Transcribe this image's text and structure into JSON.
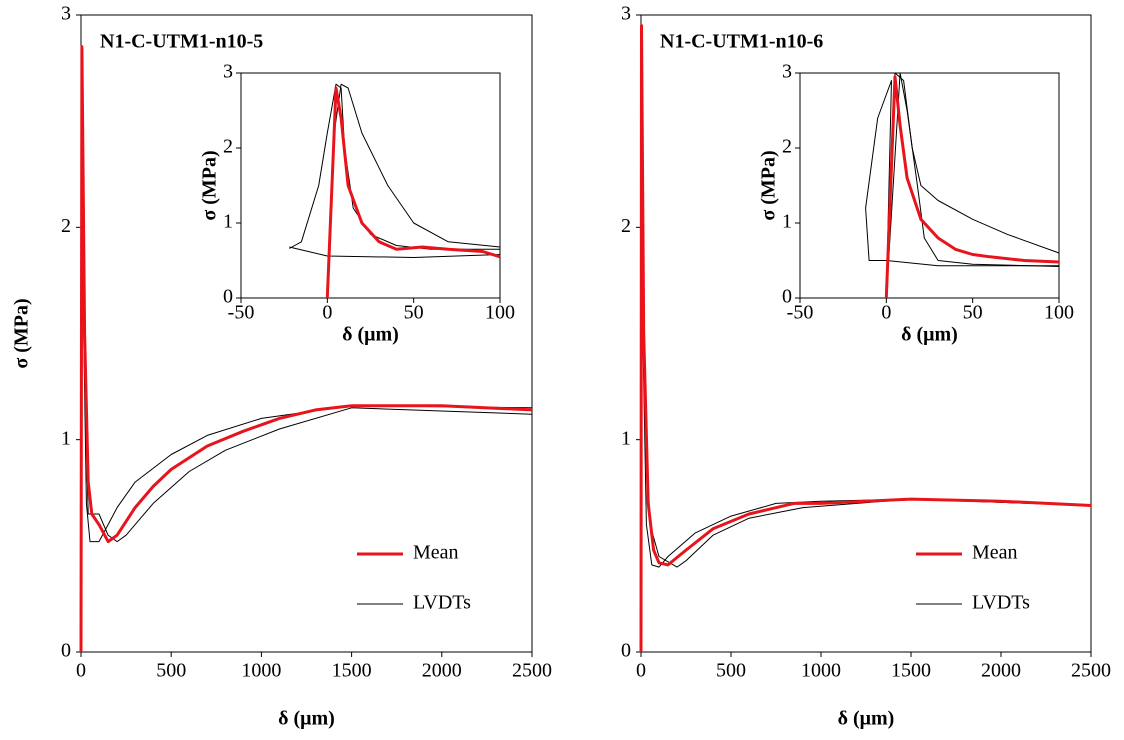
{
  "chart_data": [
    {
      "type": "line",
      "title": "N1-C-UTM1-n10-5",
      "xlabel": "δ (μm)",
      "ylabel": "σ (MPa)",
      "xlim": [
        0,
        2500
      ],
      "ylim": [
        0,
        3
      ],
      "xticks": [
        0,
        500,
        1000,
        1500,
        2000,
        2500
      ],
      "yticks": [
        0,
        1,
        2,
        3
      ],
      "legend": "lower right",
      "series": [
        {
          "name": "Mean",
          "color": "#e8141b",
          "x": [
            0,
            5,
            20,
            40,
            60,
            100,
            150,
            200,
            300,
            400,
            500,
            700,
            900,
            1000,
            1100,
            1300,
            1500,
            2000,
            2500
          ],
          "values": [
            0,
            2.85,
            1.5,
            0.8,
            0.65,
            0.6,
            0.52,
            0.55,
            0.68,
            0.78,
            0.86,
            0.97,
            1.04,
            1.07,
            1.1,
            1.14,
            1.16,
            1.16,
            1.14
          ]
        },
        {
          "name": "LVDTs",
          "color": "#000000",
          "curves": [
            {
              "x": [
                0,
                5,
                15,
                30,
                50,
                100,
                150,
                200,
                300,
                500,
                700,
                1000,
                1500,
                2500
              ],
              "values": [
                0,
                2.85,
                1.5,
                0.7,
                0.52,
                0.52,
                0.6,
                0.68,
                0.8,
                0.93,
                1.02,
                1.1,
                1.16,
                1.15
              ]
            },
            {
              "x": [
                0,
                5,
                20,
                40,
                100,
                150,
                200,
                250,
                400,
                600,
                800,
                1100,
                1500,
                2500
              ],
              "values": [
                0,
                2.8,
                1.3,
                0.65,
                0.65,
                0.55,
                0.52,
                0.55,
                0.7,
                0.85,
                0.95,
                1.05,
                1.15,
                1.12
              ]
            }
          ]
        }
      ],
      "inset": {
        "xlabel": "δ (μm)",
        "ylabel": "σ (MPa)",
        "xlim": [
          -50,
          100
        ],
        "ylim": [
          0,
          3
        ],
        "xticks": [
          -50,
          0,
          50,
          100
        ],
        "yticks": [
          0,
          1,
          2,
          3
        ],
        "series": [
          {
            "color": "#e8141b",
            "x": [
              0,
              5,
              8,
              12,
              20,
              30,
              40,
              55,
              70,
              90,
              100
            ],
            "values": [
              0,
              2.8,
              2.4,
              1.5,
              1.0,
              0.75,
              0.65,
              0.68,
              0.65,
              0.62,
              0.55
            ]
          },
          {
            "color": "#000000",
            "curves": [
              {
                "x": [
                  0,
                  4,
                  8,
                  12,
                  20,
                  35,
                  50,
                  70,
                  100
                ],
                "values": [
                  0,
                  2.2,
                  2.85,
                  2.8,
                  2.2,
                  1.5,
                  1.0,
                  0.75,
                  0.68
                ]
              },
              {
                "x": [
                  -22,
                  -15,
                  -5,
                  0,
                  5,
                  8,
                  10,
                  15,
                  25,
                  40,
                  60,
                  100
                ],
                "values": [
                  0.66,
                  0.75,
                  1.5,
                  2.2,
                  2.85,
                  2.8,
                  2.0,
                  1.2,
                  0.85,
                  0.7,
                  0.65,
                  0.65
                ]
              },
              {
                "x": [
                  -22,
                  0,
                  50,
                  100
                ],
                "values": [
                  0.68,
                  0.56,
                  0.54,
                  0.58
                ]
              }
            ]
          }
        ]
      }
    },
    {
      "type": "line",
      "title": "N1-C-UTM1-n10-6",
      "xlabel": "δ (μm)",
      "xlim": [
        0,
        2500
      ],
      "ylim": [
        0,
        3
      ],
      "xticks": [
        0,
        500,
        1000,
        1500,
        2000,
        2500
      ],
      "yticks": [
        0,
        1,
        2,
        3
      ],
      "legend": "lower right",
      "series": [
        {
          "name": "Mean",
          "color": "#e8141b",
          "x": [
            0,
            3,
            15,
            40,
            70,
            100,
            150,
            250,
            400,
            600,
            850,
            1000,
            1500,
            2000,
            2500
          ],
          "values": [
            0,
            2.95,
            1.5,
            0.7,
            0.48,
            0.42,
            0.41,
            0.48,
            0.58,
            0.65,
            0.7,
            0.7,
            0.72,
            0.71,
            0.69
          ]
        },
        {
          "name": "LVDTs",
          "color": "#000000",
          "curves": [
            {
              "x": [
                0,
                3,
                10,
                30,
                60,
                100,
                150,
                300,
                500,
                750,
                1000,
                1500,
                2500
              ],
              "values": [
                0,
                2.95,
                1.5,
                0.6,
                0.41,
                0.4,
                0.45,
                0.56,
                0.64,
                0.7,
                0.71,
                0.72,
                0.69
              ]
            },
            {
              "x": [
                0,
                3,
                20,
                50,
                100,
                200,
                250,
                400,
                600,
                900,
                1500,
                2500
              ],
              "values": [
                0,
                2.9,
                1.2,
                0.6,
                0.45,
                0.4,
                0.43,
                0.55,
                0.63,
                0.68,
                0.72,
                0.69
              ]
            }
          ]
        }
      ],
      "inset": {
        "xlabel": "δ (μm)",
        "ylabel": "σ (MPa)",
        "xlim": [
          -50,
          100
        ],
        "ylim": [
          0,
          3
        ],
        "xticks": [
          -50,
          0,
          50,
          100
        ],
        "yticks": [
          0,
          1,
          2,
          3
        ],
        "series": [
          {
            "color": "#e8141b",
            "x": [
              0,
              5,
              8,
              12,
              20,
              30,
              40,
              50,
              60,
              80,
              100
            ],
            "values": [
              0,
              2.95,
              2.3,
              1.6,
              1.05,
              0.8,
              0.65,
              0.58,
              0.55,
              0.5,
              0.48
            ]
          },
          {
            "color": "#000000",
            "curves": [
              {
                "x": [
                  0,
                  5,
                  10,
                  15,
                  20,
                  30,
                  50,
                  70,
                  100
                ],
                "values": [
                  0,
                  3,
                  2.9,
                  2.0,
                  1.5,
                  1.3,
                  1.05,
                  0.85,
                  0.6
                ]
              },
              {
                "x": [
                  0,
                  3,
                  -5,
                  -12,
                  -10,
                  0,
                  30,
                  100
                ],
                "values": [
                  0,
                  2.9,
                  2.4,
                  1.2,
                  0.5,
                  0.5,
                  0.43,
                  0.43
                ]
              },
              {
                "x": [
                  0,
                  8,
                  12,
                  18,
                  22,
                  30,
                  50,
                  100
                ],
                "values": [
                  0,
                  3,
                  2.5,
                  1.5,
                  0.8,
                  0.5,
                  0.45,
                  0.42
                ]
              }
            ]
          }
        ]
      }
    }
  ]
}
